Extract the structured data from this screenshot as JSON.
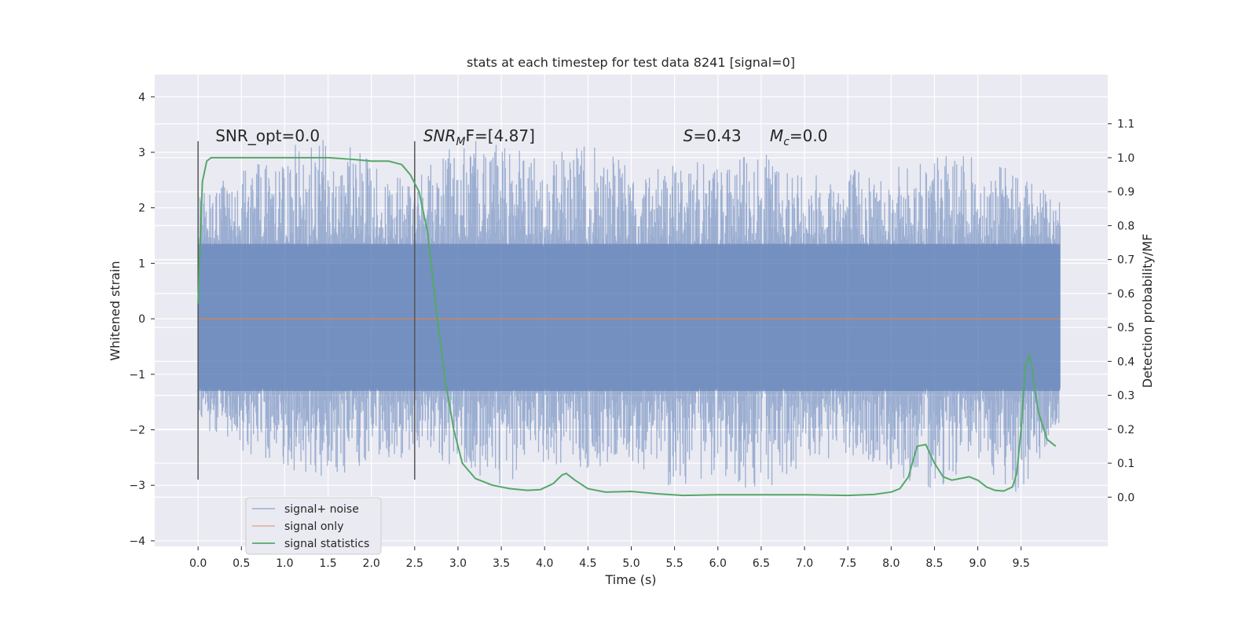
{
  "chart_data": {
    "type": "line",
    "title": "stats at each timestep for test data 8241 [signal=0]",
    "xlabel": "Time (s)",
    "ylabel": "Whitened strain",
    "y2label": "Detection probability/MF",
    "xlim": [
      -0.5,
      10.5
    ],
    "ylim": [
      -4.1,
      4.4
    ],
    "y2lim": [
      -0.145,
      1.245
    ],
    "x_ticks": [
      "0.0",
      "0.5",
      "1.0",
      "1.5",
      "2.0",
      "2.5",
      "3.0",
      "3.5",
      "4.0",
      "4.5",
      "5.0",
      "5.5",
      "6.0",
      "6.5",
      "7.0",
      "7.5",
      "8.0",
      "8.5",
      "9.0",
      "9.5"
    ],
    "y_ticks": [
      "4",
      "3",
      "2",
      "1",
      "0",
      "−1",
      "−2",
      "−3",
      "−4"
    ],
    "y2_ticks": [
      "1.1",
      "1.0",
      "0.9",
      "0.8",
      "0.7",
      "0.6",
      "0.5",
      "0.4",
      "0.3",
      "0.2",
      "0.1",
      "0.0"
    ],
    "grid": true,
    "legend_position": "lower-left",
    "colors": {
      "background": "#eaeaf2",
      "grid": "#ffffff",
      "noise": "#4c72b0",
      "signal_only": "#dd8452",
      "statistics": "#55a868",
      "marker": "#555555"
    },
    "annotations": [
      {
        "text": "SNR_opt=0.0",
        "x": 0.2
      },
      {
        "text": "SNR",
        "sub": "M",
        "rest": "F=[4.87]",
        "x": 2.6
      },
      {
        "text": "S",
        "rest": "=0.43",
        "x": 5.6
      },
      {
        "text": "M",
        "sub": "c",
        "rest": "=0.0",
        "x": 6.6
      }
    ],
    "markers": [
      {
        "x": 0.0,
        "y_range": [
          -2.9,
          3.2
        ]
      },
      {
        "x": 2.5,
        "y_range": [
          -2.9,
          3.2
        ]
      }
    ],
    "series": [
      {
        "name": "signal+ noise",
        "axis": "left",
        "x_range": [
          0.0,
          9.95
        ],
        "band_range": [
          -1.3,
          1.35
        ],
        "envelope": {
          "x": [
            0.0,
            0.5,
            1.0,
            1.5,
            2.0,
            2.5,
            3.0,
            3.5,
            4.0,
            4.5,
            5.0,
            5.5,
            6.0,
            6.5,
            7.0,
            7.5,
            8.0,
            8.5,
            9.0,
            9.5,
            9.95
          ],
          "upper": [
            2.2,
            2.7,
            3.1,
            3.3,
            2.9,
            2.6,
            3.2,
            3.3,
            2.9,
            3.2,
            2.8,
            2.9,
            2.8,
            3.0,
            2.7,
            2.8,
            2.7,
            3.0,
            2.9,
            2.7,
            2.1
          ],
          "lower": [
            -1.9,
            -2.4,
            -2.7,
            -2.9,
            -2.6,
            -2.5,
            -2.7,
            -3.0,
            -2.6,
            -2.7,
            -2.6,
            -3.1,
            -2.8,
            -3.2,
            -2.6,
            -2.6,
            -2.8,
            -3.1,
            -2.6,
            -3.2,
            -2.0
          ]
        }
      },
      {
        "name": "signal only",
        "axis": "left",
        "x": [
          0.0,
          9.95
        ],
        "y": [
          0.0,
          0.0
        ]
      },
      {
        "name": "signal statistics",
        "axis": "right",
        "x": [
          0.0,
          0.05,
          0.1,
          0.15,
          0.2,
          0.3,
          0.5,
          1.0,
          1.5,
          1.8,
          2.0,
          2.2,
          2.35,
          2.45,
          2.55,
          2.65,
          2.75,
          2.85,
          2.95,
          3.05,
          3.2,
          3.4,
          3.6,
          3.8,
          3.95,
          4.1,
          4.2,
          4.25,
          4.35,
          4.5,
          4.7,
          5.0,
          5.3,
          5.6,
          6.0,
          6.5,
          7.0,
          7.5,
          7.8,
          8.0,
          8.1,
          8.2,
          8.3,
          8.4,
          8.5,
          8.6,
          8.7,
          8.8,
          8.9,
          9.0,
          9.1,
          9.2,
          9.3,
          9.4,
          9.45,
          9.5,
          9.55,
          9.6,
          9.7,
          9.8,
          9.9
        ],
        "y": [
          0.57,
          0.93,
          0.99,
          1.0,
          1.0,
          1.0,
          1.0,
          1.0,
          1.0,
          0.995,
          0.99,
          0.99,
          0.98,
          0.95,
          0.9,
          0.78,
          0.55,
          0.35,
          0.2,
          0.1,
          0.055,
          0.035,
          0.025,
          0.02,
          0.022,
          0.04,
          0.065,
          0.07,
          0.05,
          0.025,
          0.015,
          0.017,
          0.01,
          0.005,
          0.007,
          0.007,
          0.007,
          0.005,
          0.008,
          0.015,
          0.025,
          0.06,
          0.15,
          0.155,
          0.1,
          0.06,
          0.05,
          0.055,
          0.06,
          0.05,
          0.03,
          0.02,
          0.018,
          0.03,
          0.07,
          0.2,
          0.39,
          0.42,
          0.25,
          0.17,
          0.15
        ]
      }
    ]
  }
}
